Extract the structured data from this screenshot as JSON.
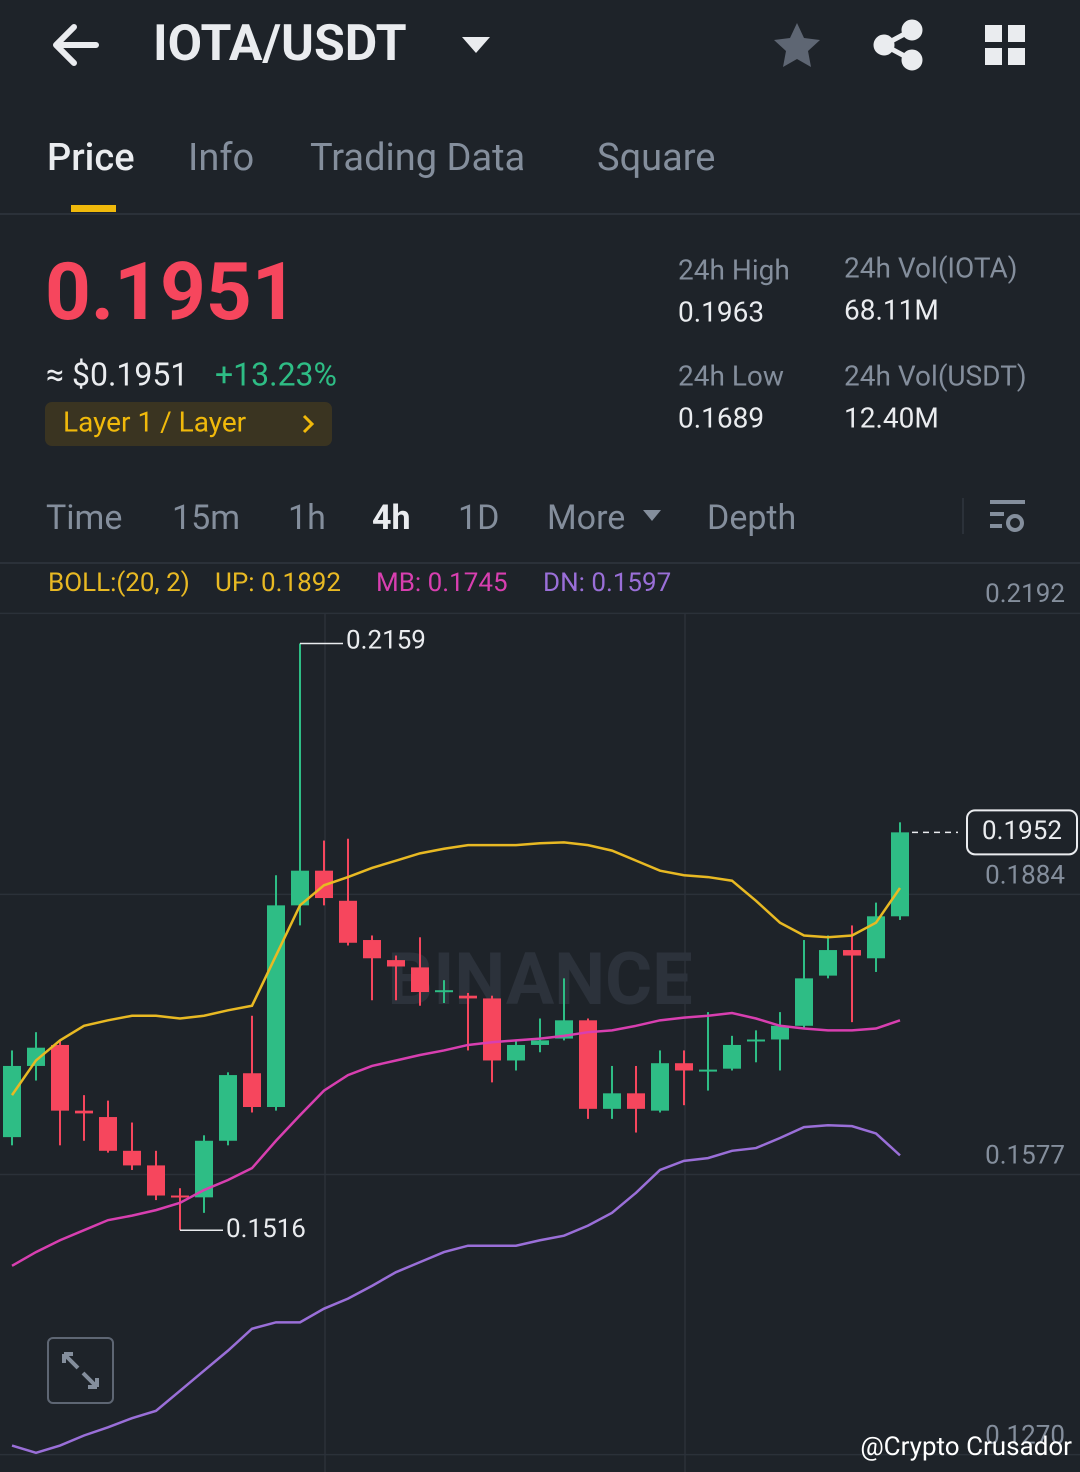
{
  "header": {
    "title": "IOTA/USDT"
  },
  "tabs": [
    "Price",
    "Info",
    "Trading Data",
    "Square"
  ],
  "price": {
    "last": "0.1951",
    "usd": "≈ $0.1951",
    "change": "+13.23%",
    "tag": "Layer 1 / Layer"
  },
  "stats": [
    {
      "label": "24h High",
      "value": "0.1963"
    },
    {
      "label": "24h Vol(IOTA)",
      "value": "68.11M"
    },
    {
      "label": "24h Low",
      "value": "0.1689"
    },
    {
      "label": "24h Vol(USDT)",
      "value": "12.40M"
    }
  ],
  "intervals": [
    "Time",
    "15m",
    "1h",
    "4h",
    "1D",
    "More",
    "Depth"
  ],
  "indicator": {
    "name": "BOLL:(20, 2)",
    "up": "UP: 0.1892",
    "mb": "MB: 0.1745",
    "dn": "DN: 0.1597"
  },
  "watermark": "BINANCE",
  "credit": "@Crypto Crusador",
  "chart_data": {
    "type": "candlestick",
    "up_color": "#2ebd85",
    "down_color": "#f6465d",
    "ylim": [
      0.1251,
      0.2245
    ],
    "yticks": [
      0.2192,
      0.1884,
      0.1577,
      {
        "value": 0.127,
        "label": "0.1270"
      }
    ],
    "grid": true,
    "open": [
      0.1618,
      0.1696,
      0.1719,
      0.1647,
      0.164,
      0.1603,
      0.1587,
      0.1554,
      0.1552,
      0.1614,
      0.1688,
      0.1651,
      0.1872,
      0.191,
      0.1877,
      0.1834,
      0.1812,
      0.1804,
      0.1777,
      0.1773,
      0.177,
      0.1702,
      0.1719,
      0.1726,
      0.1746,
      0.1649,
      0.1666,
      0.1647,
      0.1699,
      0.1691,
      0.1693,
      0.1723,
      0.1725,
      0.174,
      0.1795,
      0.1823,
      0.1814,
      0.186
    ],
    "high": [
      0.1713,
      0.1733,
      0.1724,
      0.1664,
      0.1658,
      0.1634,
      0.1603,
      0.1562,
      0.162,
      0.1689,
      0.1751,
      0.1905,
      0.2159,
      0.1943,
      0.1945,
      0.1839,
      0.1817,
      0.1837,
      0.179,
      0.1776,
      0.1773,
      0.1724,
      0.1748,
      0.1792,
      0.1748,
      0.1696,
      0.1696,
      0.1713,
      0.1713,
      0.1755,
      0.1729,
      0.1735,
      0.1755,
      0.1834,
      0.1839,
      0.185,
      0.1875,
      0.1963
    ],
    "low": [
      0.1609,
      0.168,
      0.1609,
      0.1614,
      0.1601,
      0.1582,
      0.1549,
      0.1516,
      0.1535,
      0.1609,
      0.1645,
      0.1647,
      0.185,
      0.1872,
      0.1828,
      0.1768,
      0.1768,
      0.1762,
      0.1765,
      0.1713,
      0.1678,
      0.1691,
      0.1711,
      0.1724,
      0.1638,
      0.1638,
      0.1623,
      0.1645,
      0.1653,
      0.1669,
      0.1691,
      0.17,
      0.1691,
      0.1737,
      0.1792,
      0.1744,
      0.1799,
      0.1856
    ],
    "close": [
      0.1696,
      0.1716,
      0.1647,
      0.1644,
      0.1603,
      0.1587,
      0.1554,
      0.1552,
      0.1614,
      0.1686,
      0.1651,
      0.1872,
      0.191,
      0.188,
      0.1831,
      0.1814,
      0.1805,
      0.1777,
      0.1779,
      0.177,
      0.1702,
      0.1719,
      0.1724,
      0.1746,
      0.1649,
      0.1666,
      0.1649,
      0.1699,
      0.1691,
      0.1692,
      0.1719,
      0.1725,
      0.174,
      0.1792,
      0.1823,
      0.1817,
      0.186,
      0.1952
    ],
    "series": [
      {
        "name": "UP",
        "color": "#e8b923",
        "values": [
          0.1664,
          0.1702,
          0.1724,
          0.174,
          0.1746,
          0.1751,
          0.1751,
          0.1748,
          0.1751,
          0.1757,
          0.1762,
          0.1817,
          0.1872,
          0.1894,
          0.1903,
          0.1913,
          0.1921,
          0.1929,
          0.1934,
          0.1938,
          0.1938,
          0.1938,
          0.194,
          0.1941,
          0.1938,
          0.1932,
          0.1921,
          0.191,
          0.1905,
          0.1903,
          0.1899,
          0.1877,
          0.1853,
          0.1839,
          0.1837,
          0.1839,
          0.1853,
          0.1891
        ]
      },
      {
        "name": "MB",
        "color": "#d83fb0",
        "values": [
          0.1477,
          0.1492,
          0.1505,
          0.1516,
          0.1527,
          0.1532,
          0.1538,
          0.1546,
          0.156,
          0.1571,
          0.1584,
          0.1614,
          0.1642,
          0.1669,
          0.1686,
          0.1696,
          0.1702,
          0.1708,
          0.1713,
          0.1719,
          0.1722,
          0.1724,
          0.1726,
          0.1729,
          0.1733,
          0.1735,
          0.174,
          0.1746,
          0.1749,
          0.1751,
          0.1754,
          0.1748,
          0.174,
          0.1737,
          0.1735,
          0.1735,
          0.1737,
          0.1746
        ]
      },
      {
        "name": "DN",
        "color": "#9a6fd8",
        "values": [
          0.128,
          0.1272,
          0.128,
          0.1291,
          0.13,
          0.131,
          0.1318,
          0.134,
          0.1362,
          0.1384,
          0.1408,
          0.1415,
          0.1415,
          0.143,
          0.1441,
          0.1455,
          0.147,
          0.1481,
          0.1492,
          0.1499,
          0.1499,
          0.1499,
          0.1505,
          0.151,
          0.1521,
          0.1535,
          0.1557,
          0.1582,
          0.1592,
          0.1595,
          0.1603,
          0.1606,
          0.1617,
          0.1629,
          0.1631,
          0.163,
          0.1622,
          0.1598
        ]
      }
    ]
  }
}
